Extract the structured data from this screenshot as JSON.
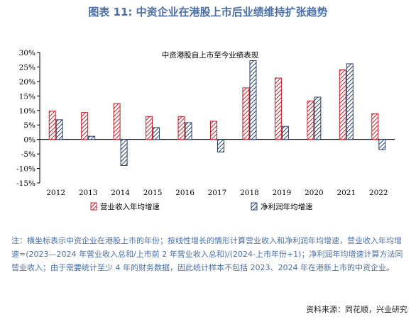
{
  "figure_title": "图表 11: 中资企业在港股上市后业绩维持扩张趋势",
  "note": "注：横坐标表示中资企业在港股上市的年份；按线性增长的情形计算营业收入和净利润年均增速，营业收入年均增速=(2023—2024 年营业收入总和/上市前 2 年营业收入总和)/(2024-上市年份+1)；净利润年均增速计算方法同营业收入；由于需要统计至少 4 年的财务数据，因此统计样本不包括 2023、2024 年在港新上市的中资企业。",
  "source": "资料来源：同花顺，兴业研究",
  "chart_data": {
    "type": "bar",
    "title": "中资港股自上市至今业绩表现",
    "categories": [
      "2012",
      "2013",
      "2014",
      "2015",
      "2016",
      "2017",
      "2018",
      "2019",
      "2020",
      "2021",
      "2022"
    ],
    "series": [
      {
        "name": "营业收入年均增速",
        "values": [
          9.8,
          9.3,
          12.4,
          7.9,
          7.9,
          6.3,
          17.8,
          21.2,
          13.3,
          24.0,
          8.9
        ]
      },
      {
        "name": "净利润年均增速",
        "values": [
          6.8,
          1.1,
          -9.0,
          4.1,
          5.8,
          -4.3,
          27.2,
          4.5,
          14.6,
          26.1,
          -3.5
        ]
      }
    ],
    "yticks": [
      "30%",
      "25%",
      "20%",
      "15%",
      "10%",
      "5%",
      "0%",
      "-5%",
      "-10%",
      "-15%"
    ],
    "ylim": [
      -15,
      30
    ],
    "grid": false,
    "legend_position": "bottom",
    "colors": {
      "revenue": "#c0202a",
      "profit": "#2a3f66",
      "title": "#4a6fa5",
      "note": "#4a6fa5"
    }
  }
}
